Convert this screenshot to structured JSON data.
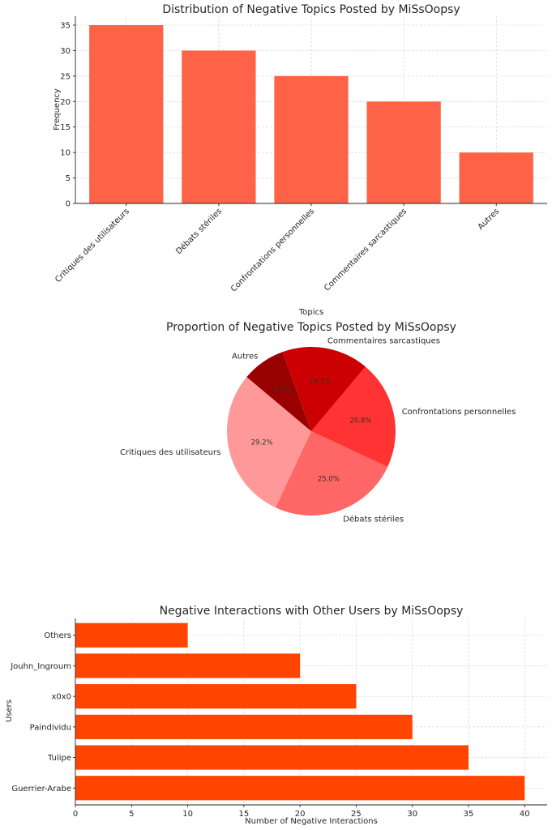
{
  "chart_data": [
    {
      "type": "bar",
      "title": "Distribution of Negative Topics Posted by MiSsOopsy",
      "xlabel": "Topics",
      "ylabel": "Frequency",
      "categories": [
        "Critiques des utilisateurs",
        "Débats stériles",
        "Confrontations personnelles",
        "Commentaires sarcastiques",
        "Autres"
      ],
      "values": [
        35,
        30,
        25,
        20,
        10
      ],
      "ylim": [
        0,
        36.75
      ],
      "yticks": [
        0,
        5,
        10,
        15,
        20,
        25,
        30,
        35
      ],
      "color": "#ff6347",
      "grid": true
    },
    {
      "type": "pie",
      "title": "Proportion of Negative Topics Posted by MiSsOopsy",
      "labels": [
        "Critiques des utilisateurs",
        "Débats stériles",
        "Confrontations personnelles",
        "Commentaires sarcastiques",
        "Autres"
      ],
      "values": [
        35,
        30,
        25,
        20,
        10
      ],
      "percent_labels": [
        "29.2%",
        "25.0%",
        "20.8%",
        "16.7%",
        "8.3%"
      ],
      "colors": [
        "#ff9999",
        "#ff6666",
        "#ff3333",
        "#cc0000",
        "#990000"
      ],
      "start_angle": 140
    },
    {
      "type": "bar",
      "orientation": "horizontal",
      "title": "Negative Interactions with Other Users by MiSsOopsy",
      "xlabel": "Number of Negative Interactions",
      "ylabel": "Users",
      "categories": [
        "Guerrier-Arabe",
        "Tulipe",
        "Paindividu",
        "x0x0",
        "Jouhn_Ingroum",
        "Others"
      ],
      "values": [
        40,
        35,
        30,
        25,
        20,
        10
      ],
      "xlim": [
        0,
        42
      ],
      "xticks": [
        0,
        5,
        10,
        15,
        20,
        25,
        30,
        35,
        40
      ],
      "color": "#ff4500",
      "grid": true
    }
  ]
}
